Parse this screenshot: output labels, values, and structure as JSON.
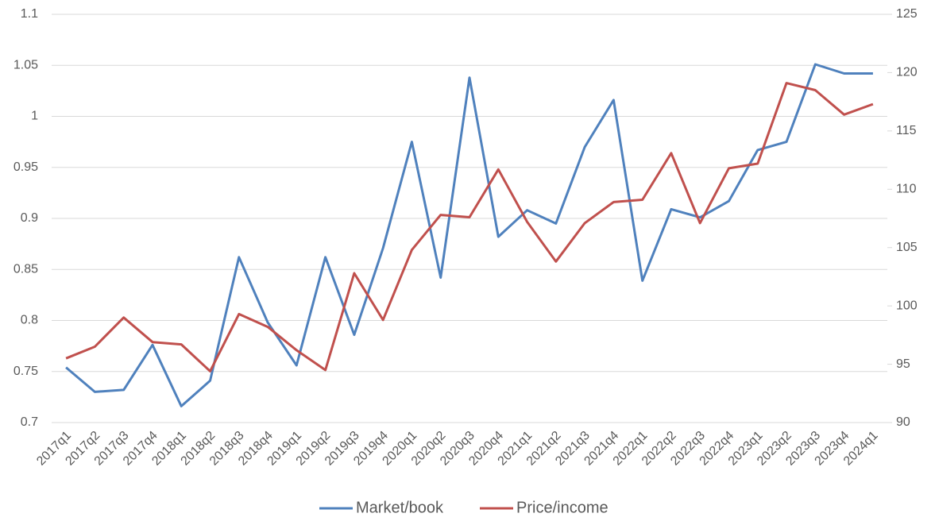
{
  "chart_data": {
    "type": "line",
    "categories": [
      "2017q1",
      "2017q2",
      "2017q3",
      "2017q4",
      "2018q1",
      "2018q2",
      "2018q3",
      "2018q4",
      "2019q1",
      "2019q2",
      "2019q3",
      "2019q4",
      "2020q1",
      "2020q2",
      "2020q3",
      "2020q4",
      "2021q1",
      "2021q2",
      "2021q3",
      "2021q4",
      "2022q1",
      "2022q2",
      "2022q3",
      "2022q4",
      "2023q1",
      "2023q2",
      "2023q3",
      "2023q4",
      "2024q1"
    ],
    "series": [
      {
        "name": "Market/book",
        "color": "#4f81bd",
        "values": [
          0.754,
          0.73,
          0.732,
          0.776,
          0.716,
          0.741,
          0.862,
          0.798,
          0.756,
          0.862,
          0.786,
          0.871,
          0.975,
          0.842,
          1.038,
          0.882,
          0.908,
          0.895,
          0.97,
          1.016,
          0.839,
          0.909,
          0.901,
          0.917,
          0.967,
          0.975,
          1.051,
          1.042,
          1.042
        ]
      },
      {
        "name": "Price/income",
        "color": "#c0504d",
        "axis": "y2",
        "values": [
          95.5,
          96.5,
          99.0,
          96.9,
          96.7,
          94.4,
          99.3,
          98.2,
          96.2,
          94.5,
          102.8,
          98.8,
          104.8,
          107.8,
          107.6,
          111.7,
          107.2,
          103.8,
          107.1,
          108.9,
          109.1,
          113.1,
          107.1,
          111.8,
          112.2,
          119.1,
          118.5,
          116.4,
          117.3
        ]
      }
    ],
    "ylim": [
      0.7,
      1.1
    ],
    "yticks": [
      0.7,
      0.75,
      0.8,
      0.85,
      0.9,
      0.95,
      1,
      1.05,
      1.1
    ],
    "y2lim": [
      90,
      125
    ],
    "y2ticks": [
      90,
      95,
      100,
      105,
      110,
      115,
      120,
      125
    ],
    "grid": true,
    "legend": "bottom"
  }
}
